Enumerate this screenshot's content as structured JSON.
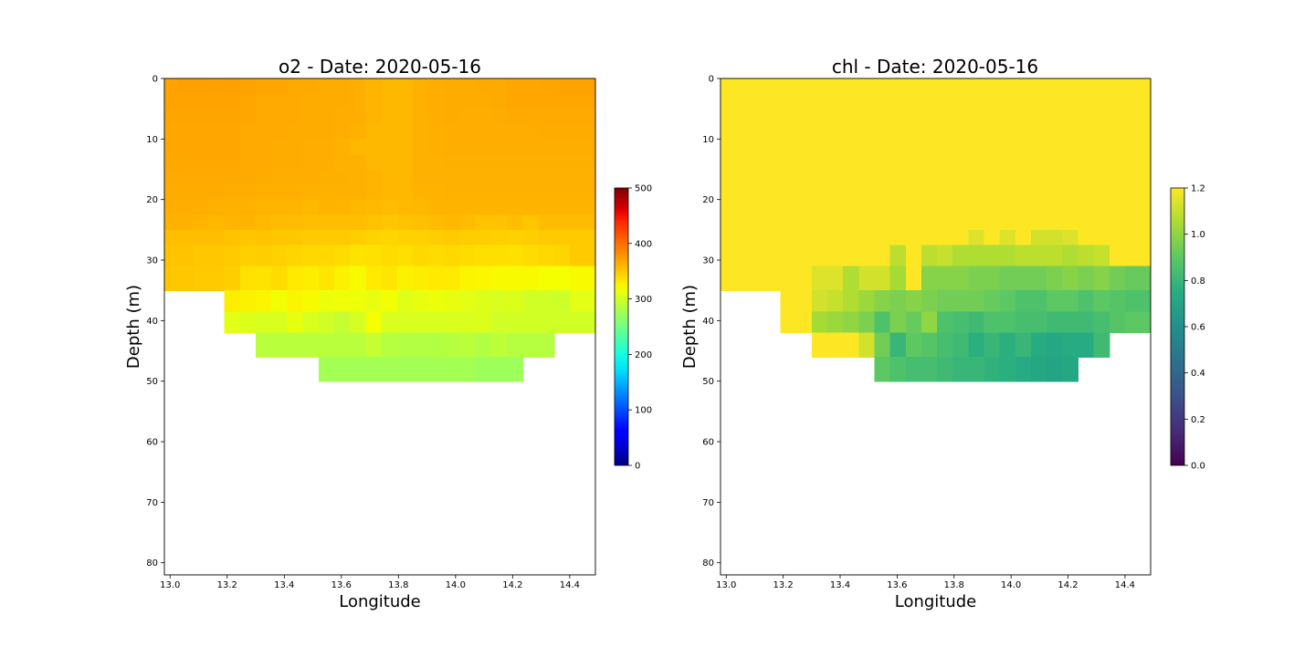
{
  "chart_data": [
    {
      "type": "heatmap",
      "title": "o2 - Date: 2020-05-16",
      "xlabel": "Longitude",
      "ylabel": "Depth (m)",
      "xlim": [
        12.98,
        14.49
      ],
      "ylim": [
        82,
        0
      ],
      "xticks": [
        "13.0",
        "13.2",
        "13.4",
        "13.6",
        "13.8",
        "14.0",
        "14.2",
        "14.4"
      ],
      "yticks": [
        "0",
        "10",
        "20",
        "30",
        "40",
        "50",
        "60",
        "70",
        "80"
      ],
      "colormap": "jet",
      "colorbar": {
        "min": 0,
        "max": 500,
        "ticks": [
          "0",
          "100",
          "200",
          "300",
          "400",
          "500"
        ]
      },
      "x_centers": [
        13.0,
        13.05,
        13.11,
        13.16,
        13.22,
        13.27,
        13.33,
        13.38,
        13.44,
        13.49,
        13.55,
        13.6,
        13.66,
        13.71,
        13.77,
        13.82,
        13.88,
        13.93,
        13.99,
        14.04,
        14.1,
        14.15,
        14.21,
        14.26,
        14.32,
        14.37,
        14.43
      ],
      "depth_bins": [
        {
          "top": 0,
          "bottom": 2.5
        },
        {
          "top": 2.5,
          "bottom": 5
        },
        {
          "top": 5,
          "bottom": 7.5
        },
        {
          "top": 7.5,
          "bottom": 10
        },
        {
          "top": 10,
          "bottom": 12.5
        },
        {
          "top": 12.5,
          "bottom": 15
        },
        {
          "top": 15,
          "bottom": 17.5
        },
        {
          "top": 17.5,
          "bottom": 20
        },
        {
          "top": 20,
          "bottom": 22.5
        },
        {
          "top": 22.5,
          "bottom": 25
        },
        {
          "top": 25,
          "bottom": 27.5
        },
        {
          "top": 27.5,
          "bottom": 31
        },
        {
          "top": 31,
          "bottom": 35
        },
        {
          "top": 35,
          "bottom": 38.5
        },
        {
          "top": 38.5,
          "bottom": 42
        },
        {
          "top": 42,
          "bottom": 46
        },
        {
          "top": 46,
          "bottom": 50
        }
      ],
      "values": [
        [
          370,
          372,
          372,
          371,
          372,
          370,
          368,
          368,
          366,
          366,
          365,
          365,
          364,
          360,
          358,
          358,
          362,
          364,
          365,
          365,
          366,
          366,
          368,
          368,
          369,
          370,
          370
        ],
        [
          370,
          370,
          370,
          370,
          370,
          368,
          366,
          366,
          366,
          365,
          365,
          365,
          364,
          360,
          358,
          358,
          362,
          364,
          365,
          365,
          365,
          366,
          368,
          368,
          368,
          368,
          368
        ],
        [
          369,
          369,
          369,
          369,
          369,
          368,
          366,
          366,
          366,
          365,
          365,
          364,
          364,
          360,
          358,
          358,
          362,
          364,
          365,
          364,
          364,
          365,
          366,
          366,
          366,
          366,
          366
        ],
        [
          368,
          368,
          368,
          368,
          368,
          366,
          366,
          366,
          365,
          365,
          365,
          364,
          362,
          358,
          358,
          358,
          362,
          363,
          364,
          364,
          364,
          364,
          364,
          364,
          365,
          365,
          365
        ],
        [
          368,
          368,
          368,
          368,
          368,
          366,
          366,
          365,
          365,
          364,
          364,
          362,
          358,
          358,
          358,
          358,
          362,
          363,
          364,
          364,
          364,
          364,
          364,
          364,
          364,
          364,
          364
        ],
        [
          367,
          367,
          367,
          367,
          367,
          366,
          366,
          365,
          365,
          364,
          364,
          362,
          362,
          358,
          358,
          358,
          362,
          362,
          363,
          363,
          363,
          363,
          363,
          363,
          363,
          363,
          363
        ],
        [
          366,
          366,
          366,
          366,
          366,
          366,
          365,
          364,
          364,
          364,
          363,
          363,
          362,
          360,
          358,
          358,
          362,
          362,
          362,
          362,
          362,
          362,
          362,
          362,
          362,
          362,
          362
        ],
        [
          365,
          365,
          365,
          365,
          364,
          364,
          363,
          363,
          363,
          362,
          362,
          362,
          362,
          360,
          359,
          358,
          361,
          361,
          362,
          362,
          362,
          362,
          362,
          362,
          362,
          362,
          362
        ],
        [
          364,
          364,
          364,
          362,
          362,
          362,
          360,
          360,
          360,
          359,
          360,
          360,
          358,
          357,
          356,
          357,
          358,
          360,
          360,
          360,
          360,
          360,
          360,
          360,
          360,
          360,
          360
        ],
        [
          362,
          362,
          360,
          358,
          360,
          360,
          357,
          356,
          356,
          355,
          355,
          355,
          355,
          352,
          350,
          352,
          353,
          356,
          358,
          356,
          352,
          352,
          354,
          350,
          356,
          356,
          356
        ],
        [
          355,
          355,
          354,
          354,
          352,
          350,
          352,
          350,
          350,
          348,
          348,
          348,
          346,
          343,
          342,
          344,
          344,
          346,
          348,
          346,
          346,
          345,
          344,
          346,
          348,
          348,
          348
        ],
        [
          352,
          352,
          350,
          350,
          348,
          345,
          346,
          344,
          342,
          340,
          340,
          338,
          334,
          335,
          338,
          336,
          340,
          338,
          340,
          338,
          336,
          336,
          335,
          338,
          340,
          342,
          348
        ],
        [
          350,
          350,
          348,
          348,
          346,
          335,
          334,
          338,
          330,
          328,
          332,
          326,
          322,
          330,
          332,
          326,
          328,
          330,
          330,
          325,
          324,
          322,
          322,
          322,
          320,
          320,
          322
        ],
        [
          null,
          null,
          null,
          null,
          328,
          326,
          325,
          318,
          325,
          322,
          314,
          316,
          315,
          312,
          318,
          308,
          312,
          314,
          312,
          310,
          306,
          304,
          306,
          300,
          300,
          298,
          310
        ],
        [
          null,
          null,
          null,
          null,
          310,
          306,
          304,
          304,
          312,
          304,
          300,
          294,
          302,
          320,
          304,
          304,
          304,
          304,
          304,
          304,
          306,
          300,
          300,
          300,
          300,
          300,
          300
        ],
        [
          null,
          null,
          null,
          null,
          null,
          null,
          288,
          288,
          288,
          288,
          288,
          288,
          288,
          294,
          286,
          284,
          284,
          284,
          286,
          288,
          284,
          290,
          286,
          286,
          286,
          null,
          null
        ],
        [
          null,
          null,
          null,
          null,
          null,
          null,
          null,
          null,
          null,
          null,
          276,
          276,
          276,
          276,
          276,
          276,
          276,
          276,
          276,
          276,
          272,
          272,
          272,
          null,
          null,
          null,
          null
        ]
      ]
    },
    {
      "type": "heatmap",
      "title": "chl - Date: 2020-05-16",
      "xlabel": "Longitude",
      "ylabel": "Depth (m)",
      "xlim": [
        12.98,
        14.49
      ],
      "ylim": [
        82,
        0
      ],
      "xticks": [
        "13.0",
        "13.2",
        "13.4",
        "13.6",
        "13.8",
        "14.0",
        "14.2",
        "14.4"
      ],
      "yticks": [
        "0",
        "10",
        "20",
        "30",
        "40",
        "50",
        "60",
        "70",
        "80"
      ],
      "colormap": "viridis",
      "colorbar": {
        "min": 0.0,
        "max": 1.2,
        "ticks": [
          "0.0",
          "0.2",
          "0.4",
          "0.6",
          "0.8",
          "1.0",
          "1.2"
        ]
      },
      "x_centers": [
        13.0,
        13.05,
        13.11,
        13.16,
        13.22,
        13.27,
        13.33,
        13.38,
        13.44,
        13.49,
        13.55,
        13.6,
        13.66,
        13.71,
        13.77,
        13.82,
        13.88,
        13.93,
        13.99,
        14.04,
        14.1,
        14.15,
        14.21,
        14.26,
        14.32,
        14.37,
        14.43
      ],
      "depth_bins": [
        {
          "top": 0,
          "bottom": 2.5
        },
        {
          "top": 2.5,
          "bottom": 5
        },
        {
          "top": 5,
          "bottom": 7.5
        },
        {
          "top": 7.5,
          "bottom": 10
        },
        {
          "top": 10,
          "bottom": 12.5
        },
        {
          "top": 12.5,
          "bottom": 15
        },
        {
          "top": 15,
          "bottom": 17.5
        },
        {
          "top": 17.5,
          "bottom": 20
        },
        {
          "top": 20,
          "bottom": 22.5
        },
        {
          "top": 22.5,
          "bottom": 25
        },
        {
          "top": 25,
          "bottom": 27.5
        },
        {
          "top": 27.5,
          "bottom": 31
        },
        {
          "top": 31,
          "bottom": 35
        },
        {
          "top": 35,
          "bottom": 38.5
        },
        {
          "top": 38.5,
          "bottom": 42
        },
        {
          "top": 42,
          "bottom": 46
        },
        {
          "top": 46,
          "bottom": 50
        }
      ],
      "values": [
        [
          1.2,
          1.2,
          1.2,
          1.2,
          1.2,
          1.2,
          1.2,
          1.2,
          1.2,
          1.2,
          1.2,
          1.2,
          1.2,
          1.2,
          1.2,
          1.2,
          1.2,
          1.2,
          1.2,
          1.2,
          1.2,
          1.2,
          1.2,
          1.2,
          1.2,
          1.2,
          1.2
        ],
        [
          1.2,
          1.2,
          1.2,
          1.2,
          1.2,
          1.2,
          1.2,
          1.2,
          1.2,
          1.2,
          1.2,
          1.2,
          1.2,
          1.2,
          1.2,
          1.2,
          1.2,
          1.2,
          1.2,
          1.2,
          1.2,
          1.2,
          1.2,
          1.2,
          1.2,
          1.2,
          1.2
        ],
        [
          1.2,
          1.2,
          1.2,
          1.2,
          1.2,
          1.2,
          1.2,
          1.2,
          1.2,
          1.2,
          1.2,
          1.2,
          1.2,
          1.2,
          1.2,
          1.2,
          1.2,
          1.2,
          1.2,
          1.2,
          1.2,
          1.2,
          1.2,
          1.2,
          1.2,
          1.2,
          1.2
        ],
        [
          1.2,
          1.2,
          1.2,
          1.2,
          1.2,
          1.2,
          1.2,
          1.2,
          1.2,
          1.2,
          1.2,
          1.2,
          1.2,
          1.2,
          1.2,
          1.2,
          1.2,
          1.2,
          1.2,
          1.2,
          1.2,
          1.2,
          1.2,
          1.2,
          1.2,
          1.2,
          1.2
        ],
        [
          1.2,
          1.2,
          1.2,
          1.2,
          1.2,
          1.2,
          1.2,
          1.2,
          1.2,
          1.2,
          1.2,
          1.2,
          1.2,
          1.2,
          1.2,
          1.2,
          1.2,
          1.2,
          1.2,
          1.2,
          1.2,
          1.2,
          1.2,
          1.2,
          1.2,
          1.2,
          1.2
        ],
        [
          1.2,
          1.2,
          1.2,
          1.2,
          1.2,
          1.2,
          1.2,
          1.2,
          1.2,
          1.2,
          1.2,
          1.2,
          1.2,
          1.2,
          1.2,
          1.2,
          1.2,
          1.2,
          1.2,
          1.2,
          1.2,
          1.2,
          1.2,
          1.2,
          1.2,
          1.2,
          1.2
        ],
        [
          1.2,
          1.2,
          1.2,
          1.2,
          1.2,
          1.2,
          1.2,
          1.2,
          1.2,
          1.2,
          1.2,
          1.2,
          1.2,
          1.2,
          1.2,
          1.2,
          1.2,
          1.2,
          1.2,
          1.2,
          1.2,
          1.2,
          1.2,
          1.2,
          1.2,
          1.2,
          1.2
        ],
        [
          1.2,
          1.2,
          1.2,
          1.2,
          1.2,
          1.2,
          1.2,
          1.2,
          1.2,
          1.2,
          1.2,
          1.2,
          1.2,
          1.2,
          1.2,
          1.2,
          1.2,
          1.2,
          1.2,
          1.2,
          1.2,
          1.2,
          1.2,
          1.2,
          1.2,
          1.2,
          1.2
        ],
        [
          1.2,
          1.2,
          1.2,
          1.2,
          1.2,
          1.2,
          1.2,
          1.2,
          1.2,
          1.2,
          1.2,
          1.2,
          1.2,
          1.2,
          1.2,
          1.2,
          1.2,
          1.2,
          1.2,
          1.2,
          1.2,
          1.2,
          1.2,
          1.2,
          1.2,
          1.2,
          1.2
        ],
        [
          1.2,
          1.2,
          1.2,
          1.2,
          1.2,
          1.2,
          1.2,
          1.2,
          1.2,
          1.2,
          1.2,
          1.2,
          1.2,
          1.2,
          1.2,
          1.2,
          1.2,
          1.2,
          1.2,
          1.2,
          1.2,
          1.2,
          1.2,
          1.2,
          1.2,
          1.2,
          1.2
        ],
        [
          1.2,
          1.2,
          1.2,
          1.2,
          1.2,
          1.2,
          1.2,
          1.2,
          1.2,
          1.2,
          1.2,
          1.2,
          1.2,
          1.2,
          1.2,
          1.2,
          1.14,
          1.2,
          1.14,
          1.2,
          1.12,
          1.12,
          1.14,
          1.2,
          1.2,
          1.2,
          1.2
        ],
        [
          1.2,
          1.2,
          1.2,
          1.2,
          1.2,
          1.2,
          1.2,
          1.2,
          1.2,
          1.2,
          1.2,
          1.08,
          1.2,
          1.08,
          1.1,
          1.06,
          1.06,
          1.06,
          1.06,
          1.08,
          1.08,
          1.08,
          1.06,
          1.08,
          1.1,
          1.2,
          1.2
        ],
        [
          1.2,
          1.2,
          1.2,
          1.2,
          1.2,
          1.2,
          1.14,
          1.14,
          1.06,
          1.12,
          1.12,
          1.04,
          1.2,
          0.98,
          0.98,
          0.98,
          0.96,
          0.96,
          0.94,
          0.94,
          0.94,
          0.96,
          0.98,
          0.96,
          0.98,
          0.94,
          0.92
        ],
        [
          null,
          null,
          null,
          null,
          1.2,
          1.2,
          1.12,
          1.1,
          1.06,
          1.02,
          0.98,
          0.96,
          0.98,
          0.96,
          0.94,
          0.94,
          0.94,
          0.92,
          0.9,
          0.86,
          0.86,
          0.9,
          0.9,
          0.86,
          0.9,
          0.88,
          0.86
        ],
        [
          null,
          null,
          null,
          null,
          1.2,
          1.2,
          1.04,
          1.02,
          1.0,
          0.96,
          0.86,
          0.96,
          0.92,
          1.0,
          0.86,
          0.84,
          0.82,
          0.86,
          0.86,
          0.84,
          0.84,
          0.82,
          0.82,
          0.82,
          0.84,
          0.88,
          0.9
        ],
        [
          null,
          null,
          null,
          null,
          null,
          null,
          1.2,
          1.2,
          1.2,
          1.12,
          0.94,
          0.8,
          0.9,
          0.88,
          0.84,
          0.82,
          0.76,
          0.8,
          0.76,
          0.8,
          0.74,
          0.72,
          0.74,
          0.74,
          0.82,
          null,
          null
        ],
        [
          null,
          null,
          null,
          null,
          null,
          null,
          null,
          null,
          null,
          null,
          0.9,
          0.86,
          0.84,
          0.84,
          0.82,
          0.8,
          0.8,
          0.78,
          0.76,
          0.74,
          0.72,
          0.7,
          0.72,
          null,
          null,
          null,
          null
        ]
      ]
    }
  ]
}
